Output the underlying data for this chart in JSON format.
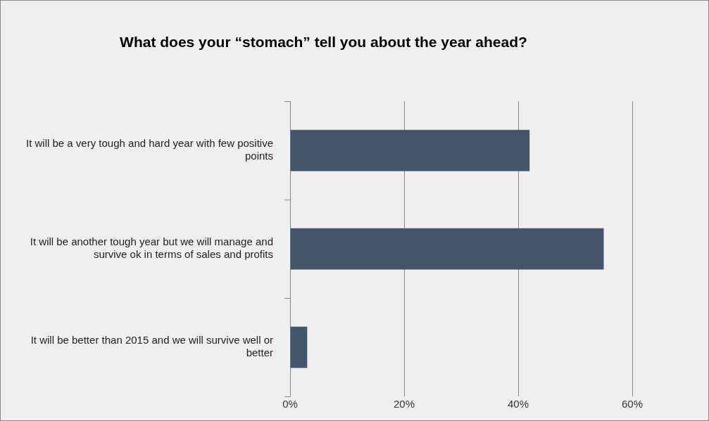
{
  "chart_data": {
    "type": "bar",
    "orientation": "horizontal",
    "title": "What does your “stomach” tell you about the year ahead?",
    "categories": [
      "It will be a very tough and hard year with few positive points",
      "It will be another tough year but we will manage and survive ok in terms of sales and profits",
      "It will be better than 2015 and we will survive well or better"
    ],
    "values": [
      42,
      55,
      3
    ],
    "color": "#44546a",
    "xlim": [
      0,
      60
    ],
    "xticks": [
      {
        "value": 0,
        "label": "0%"
      },
      {
        "value": 20,
        "label": "20%"
      },
      {
        "value": 40,
        "label": "40%"
      },
      {
        "value": 60,
        "label": "60%"
      }
    ],
    "grid": "x",
    "legend": false
  }
}
